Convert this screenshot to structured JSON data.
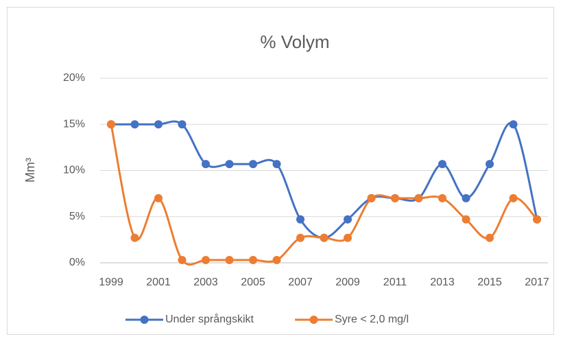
{
  "chart_data": {
    "type": "line",
    "title": "% Volym",
    "y_label": "Mm³",
    "x": [
      1999,
      2000,
      2001,
      2002,
      2003,
      2004,
      2005,
      2006,
      2007,
      2008,
      2009,
      2010,
      2011,
      2012,
      2013,
      2014,
      2015,
      2016,
      2017
    ],
    "series": [
      {
        "name": "Under språngskikt",
        "color": "#4472c4",
        "values": [
          15,
          15,
          15,
          15,
          10.7,
          10.7,
          10.7,
          10.7,
          4.7,
          2.7,
          4.7,
          7,
          7,
          7,
          10.7,
          7,
          10.7,
          15,
          4.7
        ]
      },
      {
        "name": "Syre < 2,0 mg/l",
        "color": "#ed7d31",
        "values": [
          15,
          2.7,
          7,
          0.3,
          0.3,
          0.3,
          0.3,
          0.3,
          2.7,
          2.7,
          2.7,
          7,
          7,
          7,
          7,
          4.7,
          2.7,
          7,
          4.7
        ]
      }
    ],
    "xlim": [
      1999,
      2017
    ],
    "xticks": [
      1999,
      2001,
      2003,
      2005,
      2007,
      2009,
      2011,
      2013,
      2015,
      2017
    ],
    "ylim": [
      0,
      20
    ],
    "yticks": [
      {
        "value": 0,
        "label": "0%"
      },
      {
        "value": 5,
        "label": "5%"
      },
      {
        "value": 10,
        "label": "10%"
      },
      {
        "value": 15,
        "label": "15%"
      },
      {
        "value": 20,
        "label": "20%"
      }
    ],
    "grid": true,
    "legend": "bottom",
    "smooth": true
  }
}
